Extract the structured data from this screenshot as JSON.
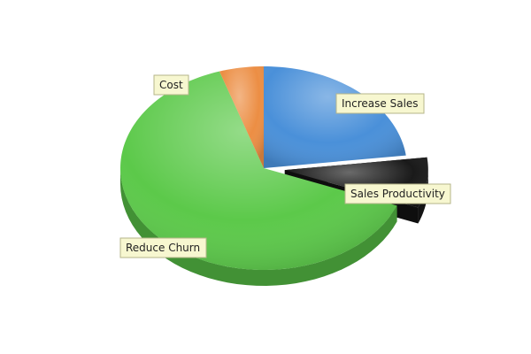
{
  "chart_data": {
    "type": "pie",
    "title": "",
    "style": "3d",
    "slices": [
      {
        "label": "Increase Sales",
        "value": 23,
        "color": "#4a90d9"
      },
      {
        "label": "Sales Productivity",
        "value": 8,
        "color": "#1a1a1a",
        "exploded": true
      },
      {
        "label": "Reduce Churn",
        "value": 64,
        "color": "#5cc94a"
      },
      {
        "label": "Cost",
        "value": 5,
        "color": "#ec8e44"
      }
    ],
    "label_box_color": "#f7f7d0",
    "label_border_color": "#b6b68a"
  }
}
